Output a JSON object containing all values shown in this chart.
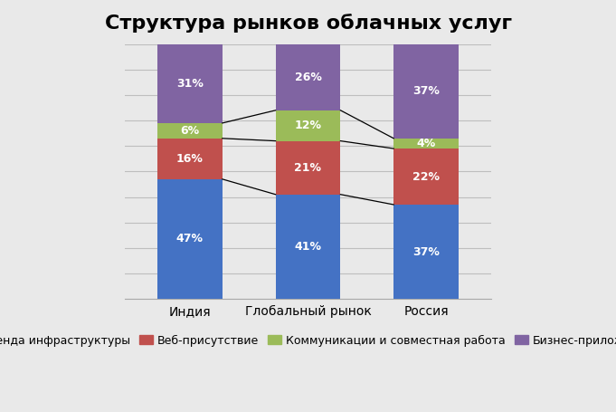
{
  "title": "Структура рынков облачных услуг",
  "categories": [
    "Индия",
    "Глобальный рынок",
    "Россия"
  ],
  "legend_labels": [
    "Аренда инфраструктуры",
    "Веб-присутствие",
    "Коммуникации и совместная работа",
    "Бизнес-приложения"
  ],
  "values": {
    "Аренда инфраструктуры": [
      47,
      41,
      37
    ],
    "Веб-присутствие": [
      16,
      21,
      22
    ],
    "Коммуникации и совместная работа": [
      6,
      12,
      4
    ],
    "Бизнес-приложения": [
      31,
      26,
      37
    ]
  },
  "colors": [
    "#4472C4",
    "#C0504D",
    "#9BBB59",
    "#8064A2"
  ],
  "bar_width": 0.55,
  "background_color": "#E9E9E9",
  "plot_bg_color": "#E9E9E9",
  "title_fontsize": 16,
  "label_fontsize": 9,
  "legend_fontsize": 9,
  "text_color_white": "#FFFFFF",
  "line_color": "#000000",
  "grid_color": "#BEBEBE",
  "ylim": [
    0,
    100
  ],
  "yticks": [
    0,
    10,
    20,
    30,
    40,
    50,
    60,
    70,
    80,
    90,
    100
  ]
}
